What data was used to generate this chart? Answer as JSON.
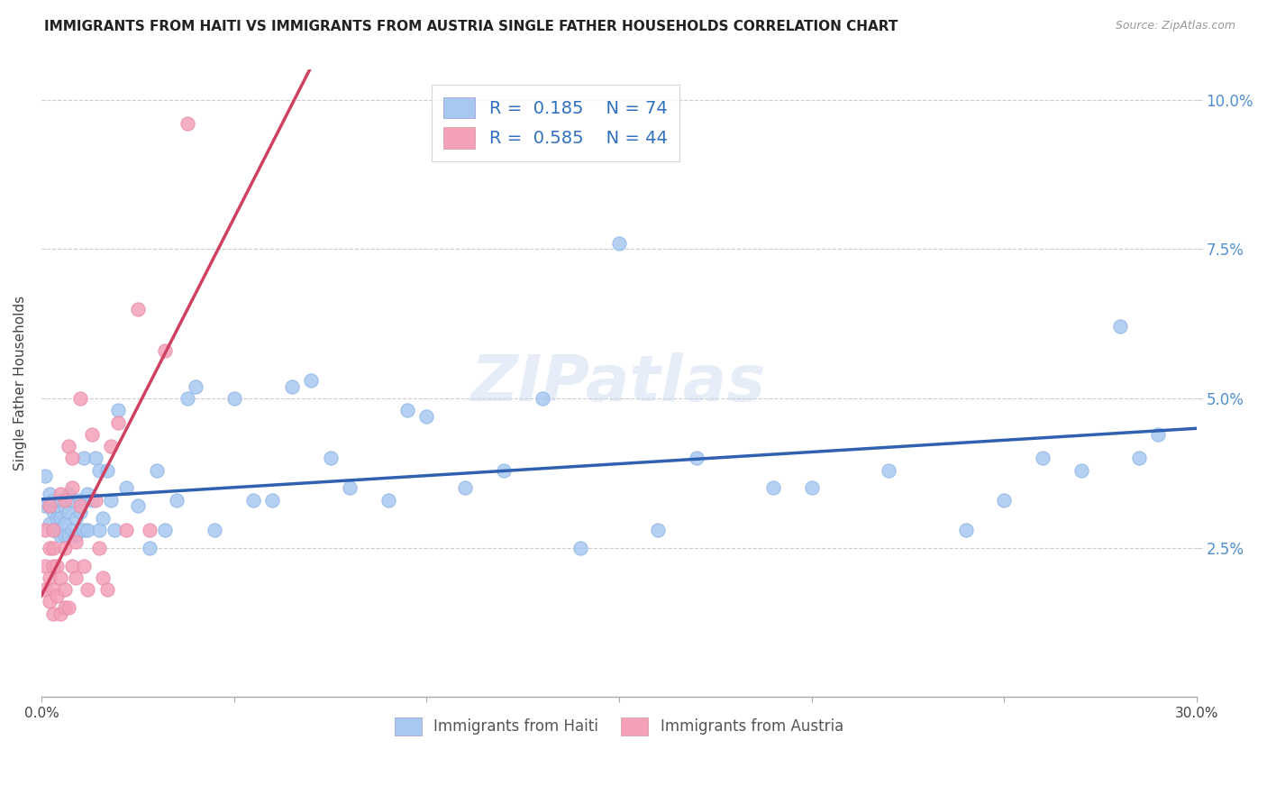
{
  "title": "IMMIGRANTS FROM HAITI VS IMMIGRANTS FROM AUSTRIA SINGLE FATHER HOUSEHOLDS CORRELATION CHART",
  "source": "Source: ZipAtlas.com",
  "ylabel_label": "Single Father Households",
  "xlim": [
    0.0,
    0.3
  ],
  "ylim": [
    0.0,
    0.105
  ],
  "xticks": [
    0.0,
    0.05,
    0.1,
    0.15,
    0.2,
    0.25,
    0.3
  ],
  "yticks": [
    0.025,
    0.05,
    0.075,
    0.1
  ],
  "haiti_color": "#a8c8f0",
  "austria_color": "#f4a0b8",
  "haiti_line_color": "#3060b0",
  "austria_line_color": "#d04060",
  "haiti_r": 0.185,
  "haiti_n": 74,
  "austria_r": 0.585,
  "austria_n": 44,
  "watermark": "ZIPatlas",
  "legend_haiti_label": "Immigrants from Haiti",
  "legend_austria_label": "Immigrants from Austria",
  "haiti_scatter_x": [
    0.001,
    0.001,
    0.002,
    0.002,
    0.002,
    0.003,
    0.003,
    0.003,
    0.004,
    0.004,
    0.005,
    0.005,
    0.005,
    0.006,
    0.006,
    0.006,
    0.007,
    0.007,
    0.007,
    0.008,
    0.008,
    0.009,
    0.009,
    0.01,
    0.01,
    0.011,
    0.011,
    0.012,
    0.012,
    0.013,
    0.014,
    0.015,
    0.015,
    0.016,
    0.017,
    0.018,
    0.019,
    0.02,
    0.022,
    0.025,
    0.028,
    0.03,
    0.032,
    0.035,
    0.038,
    0.04,
    0.045,
    0.05,
    0.055,
    0.06,
    0.065,
    0.07,
    0.075,
    0.08,
    0.09,
    0.095,
    0.1,
    0.11,
    0.12,
    0.13,
    0.14,
    0.15,
    0.16,
    0.17,
    0.19,
    0.2,
    0.22,
    0.24,
    0.25,
    0.26,
    0.27,
    0.28,
    0.285,
    0.29
  ],
  "haiti_scatter_y": [
    0.032,
    0.037,
    0.029,
    0.032,
    0.034,
    0.028,
    0.031,
    0.033,
    0.03,
    0.028,
    0.033,
    0.03,
    0.027,
    0.032,
    0.029,
    0.027,
    0.034,
    0.031,
    0.027,
    0.028,
    0.033,
    0.03,
    0.027,
    0.033,
    0.031,
    0.04,
    0.028,
    0.034,
    0.028,
    0.033,
    0.04,
    0.038,
    0.028,
    0.03,
    0.038,
    0.033,
    0.028,
    0.048,
    0.035,
    0.032,
    0.025,
    0.038,
    0.028,
    0.033,
    0.05,
    0.052,
    0.028,
    0.05,
    0.033,
    0.033,
    0.052,
    0.053,
    0.04,
    0.035,
    0.033,
    0.048,
    0.047,
    0.035,
    0.038,
    0.05,
    0.025,
    0.076,
    0.028,
    0.04,
    0.035,
    0.035,
    0.038,
    0.028,
    0.033,
    0.04,
    0.038,
    0.062,
    0.04,
    0.044
  ],
  "austria_scatter_x": [
    0.001,
    0.001,
    0.001,
    0.002,
    0.002,
    0.002,
    0.002,
    0.003,
    0.003,
    0.003,
    0.003,
    0.003,
    0.004,
    0.004,
    0.005,
    0.005,
    0.005,
    0.006,
    0.006,
    0.006,
    0.006,
    0.007,
    0.007,
    0.008,
    0.008,
    0.008,
    0.009,
    0.009,
    0.01,
    0.01,
    0.011,
    0.012,
    0.013,
    0.014,
    0.015,
    0.016,
    0.017,
    0.018,
    0.02,
    0.022,
    0.025,
    0.028,
    0.032,
    0.038
  ],
  "austria_scatter_y": [
    0.018,
    0.022,
    0.028,
    0.016,
    0.02,
    0.025,
    0.032,
    0.014,
    0.018,
    0.022,
    0.025,
    0.028,
    0.017,
    0.022,
    0.014,
    0.02,
    0.034,
    0.015,
    0.018,
    0.025,
    0.033,
    0.015,
    0.042,
    0.022,
    0.035,
    0.04,
    0.026,
    0.02,
    0.032,
    0.05,
    0.022,
    0.018,
    0.044,
    0.033,
    0.025,
    0.02,
    0.018,
    0.042,
    0.046,
    0.028,
    0.065,
    0.028,
    0.058,
    0.096
  ]
}
